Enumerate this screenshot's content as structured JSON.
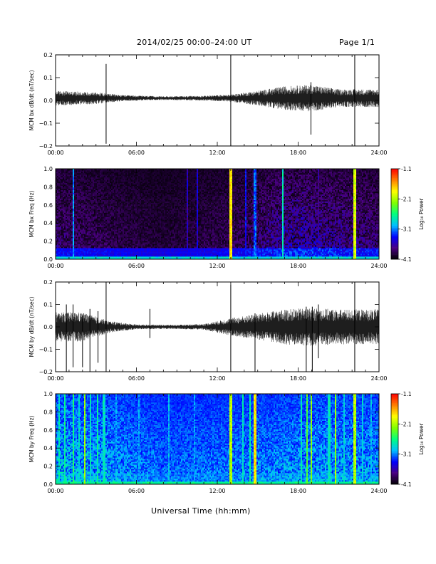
{
  "header": {
    "title": "2014/02/25  00:00–24:00 UT",
    "page": "Page 1/1"
  },
  "xaxis": {
    "label": "Universal Time (hh:mm)",
    "range_hours": [
      0,
      24
    ],
    "ticks": [
      "00:00",
      "06:00",
      "12:00",
      "18:00",
      "24:00"
    ],
    "tick_values_hours": [
      0,
      6,
      12,
      18,
      24
    ],
    "minor_step_hours": 1
  },
  "colorbar": {
    "label": "Log₁₀ Power",
    "ticks": [
      "-1.1",
      "-2.1",
      "-3.1",
      "-4.1"
    ],
    "tick_values": [
      -1.1,
      -2.1,
      -3.1,
      -4.1
    ],
    "range": [
      -4.1,
      -1.1
    ],
    "colors": [
      "#000000",
      "#4b0082",
      "#0000ff",
      "#00bfff",
      "#00ff80",
      "#80ff00",
      "#ffff00",
      "#ff8000",
      "#ff0000"
    ]
  },
  "chart_data": [
    {
      "type": "line",
      "ylabel": "MCM bx dB/dt (nT/sec)",
      "ylim": [
        -0.2,
        0.2
      ],
      "yticks": [
        "0.2",
        "0.1",
        "0.0",
        "−0.1",
        "−0.2"
      ],
      "ytick_values": [
        0.2,
        0.1,
        0.0,
        -0.1,
        -0.2
      ],
      "baseline": 0.01,
      "noise_envelope": [
        {
          "t": 0,
          "amp": 0.025
        },
        {
          "t": 3,
          "amp": 0.02
        },
        {
          "t": 5,
          "amp": 0.01
        },
        {
          "t": 8,
          "amp": 0.006
        },
        {
          "t": 11,
          "amp": 0.008
        },
        {
          "t": 13,
          "amp": 0.012
        },
        {
          "t": 15,
          "amp": 0.025
        },
        {
          "t": 17,
          "amp": 0.04
        },
        {
          "t": 19,
          "amp": 0.045
        },
        {
          "t": 21,
          "amp": 0.03
        },
        {
          "t": 24,
          "amp": 0.03
        }
      ],
      "spikes": [
        {
          "t": 3.75,
          "min": -0.19,
          "max": 0.16
        },
        {
          "t": 13.0,
          "min": -0.2,
          "max": 0.2
        },
        {
          "t": 18.95,
          "min": -0.15,
          "max": 0.08
        },
        {
          "t": 22.2,
          "min": -0.2,
          "max": 0.2
        }
      ]
    },
    {
      "type": "heatmap",
      "ylabel": "MCM bx Freq (Hz)",
      "ylim": [
        0.0,
        1.0
      ],
      "yticks": [
        "1.0",
        "0.8",
        "0.6",
        "0.4",
        "0.2",
        "0.0"
      ],
      "ytick_values": [
        1.0,
        0.8,
        0.6,
        0.4,
        0.2,
        0.0
      ],
      "background_level": -4.05,
      "low_freq_level": -3.0,
      "activity_envelope": [
        {
          "t": 0,
          "a": 0.6
        },
        {
          "t": 4,
          "a": 0.4
        },
        {
          "t": 8,
          "a": 0.25
        },
        {
          "t": 11,
          "a": 0.35
        },
        {
          "t": 14,
          "a": 0.5
        },
        {
          "t": 16,
          "a": 0.75
        },
        {
          "t": 18,
          "a": 0.9
        },
        {
          "t": 21,
          "a": 0.75
        },
        {
          "t": 24,
          "a": 0.6
        }
      ],
      "vertical_streaks": [
        {
          "t": 1.3,
          "level": -2.9
        },
        {
          "t": 9.8,
          "level": -3.4
        },
        {
          "t": 10.5,
          "level": -3.3
        },
        {
          "t": 13.0,
          "level": -1.6
        },
        {
          "t": 14.1,
          "level": -3.2
        },
        {
          "t": 14.8,
          "level": -3.0
        },
        {
          "t": 16.9,
          "level": -2.6
        },
        {
          "t": 19.5,
          "level": -3.5
        },
        {
          "t": 22.2,
          "level": -1.8
        }
      ]
    },
    {
      "type": "line",
      "ylabel": "MCM by dB/dt (nT/sec)",
      "ylim": [
        -0.2,
        0.2
      ],
      "yticks": [
        "0.2",
        "0.1",
        "0.0",
        "−0.1",
        "−0.2"
      ],
      "ytick_values": [
        0.2,
        0.1,
        0.0,
        -0.1,
        -0.2
      ],
      "baseline": 0.0,
      "noise_envelope": [
        {
          "t": 0,
          "amp": 0.05
        },
        {
          "t": 2,
          "amp": 0.05
        },
        {
          "t": 4,
          "amp": 0.02
        },
        {
          "t": 6,
          "amp": 0.008
        },
        {
          "t": 9,
          "amp": 0.007
        },
        {
          "t": 11,
          "amp": 0.01
        },
        {
          "t": 13,
          "amp": 0.03
        },
        {
          "t": 15,
          "amp": 0.045
        },
        {
          "t": 17,
          "amp": 0.06
        },
        {
          "t": 19,
          "amp": 0.065
        },
        {
          "t": 21,
          "amp": 0.06
        },
        {
          "t": 24,
          "amp": 0.06
        }
      ],
      "spikes": [
        {
          "t": 0.8,
          "min": -0.2,
          "max": 0.1
        },
        {
          "t": 1.3,
          "min": -0.18,
          "max": 0.1
        },
        {
          "t": 2.0,
          "min": -0.18,
          "max": 0.05
        },
        {
          "t": 2.55,
          "min": -0.2,
          "max": 0.08
        },
        {
          "t": 3.15,
          "min": -0.16,
          "max": 0.07
        },
        {
          "t": 3.75,
          "min": -0.2,
          "max": 0.2
        },
        {
          "t": 7.0,
          "min": -0.05,
          "max": 0.08
        },
        {
          "t": 13.0,
          "min": -0.2,
          "max": 0.19
        },
        {
          "t": 14.8,
          "min": -0.2,
          "max": 0.06
        },
        {
          "t": 18.6,
          "min": -0.2,
          "max": 0.09
        },
        {
          "t": 19.05,
          "min": -0.2,
          "max": 0.09
        },
        {
          "t": 19.5,
          "min": -0.14,
          "max": 0.1
        },
        {
          "t": 22.2,
          "min": -0.2,
          "max": 0.2
        }
      ]
    },
    {
      "type": "heatmap",
      "ylabel": "MCM by Freq (Hz)",
      "ylim": [
        0.0,
        1.0
      ],
      "yticks": [
        "1.0",
        "0.8",
        "0.6",
        "0.4",
        "0.2",
        "0.0"
      ],
      "ytick_values": [
        1.0,
        0.8,
        0.6,
        0.4,
        0.2,
        0.0
      ],
      "background_level": -3.35,
      "low_freq_level": -2.8,
      "activity_envelope": [
        {
          "t": 0,
          "a": 0.85
        },
        {
          "t": 4,
          "a": 0.7
        },
        {
          "t": 8,
          "a": 0.45
        },
        {
          "t": 12,
          "a": 0.5
        },
        {
          "t": 16,
          "a": 0.6
        },
        {
          "t": 20,
          "a": 0.7
        },
        {
          "t": 24,
          "a": 0.65
        }
      ],
      "vertical_streaks": [
        {
          "t": 0.3,
          "level": -2.6
        },
        {
          "t": 0.7,
          "level": -2.5
        },
        {
          "t": 1.3,
          "level": -2.4
        },
        {
          "t": 1.7,
          "level": -2.7
        },
        {
          "t": 2.2,
          "level": -2.0
        },
        {
          "t": 2.6,
          "level": -2.6
        },
        {
          "t": 3.1,
          "level": -2.5
        },
        {
          "t": 3.6,
          "level": -2.6
        },
        {
          "t": 4.5,
          "level": -2.9
        },
        {
          "t": 6.2,
          "level": -2.9
        },
        {
          "t": 8.4,
          "level": -2.8
        },
        {
          "t": 10.3,
          "level": -2.9
        },
        {
          "t": 13.0,
          "level": -1.9
        },
        {
          "t": 13.9,
          "level": -2.6
        },
        {
          "t": 14.4,
          "level": -2.5
        },
        {
          "t": 14.8,
          "level": -1.6
        },
        {
          "t": 18.2,
          "level": -2.6
        },
        {
          "t": 18.7,
          "level": -2.2
        },
        {
          "t": 19.0,
          "level": -2.0
        },
        {
          "t": 20.3,
          "level": -2.6
        },
        {
          "t": 20.8,
          "level": -2.0
        },
        {
          "t": 21.4,
          "level": -2.7
        },
        {
          "t": 22.2,
          "level": -1.9
        },
        {
          "t": 22.8,
          "level": -2.7
        },
        {
          "t": 23.4,
          "level": -2.8
        }
      ]
    }
  ]
}
